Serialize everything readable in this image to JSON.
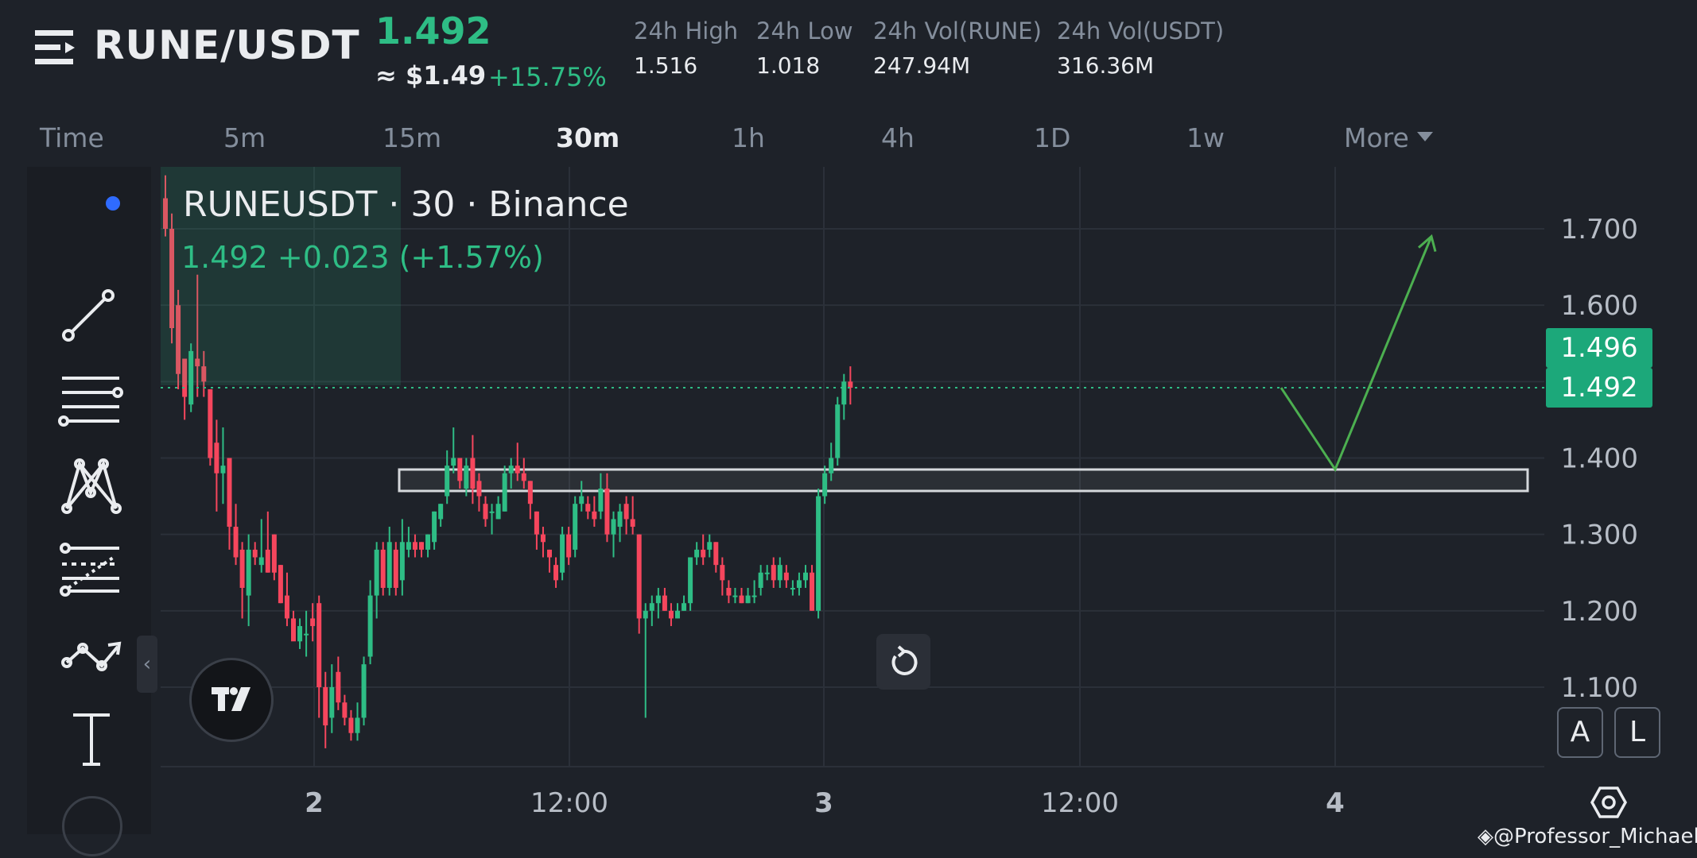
{
  "header": {
    "pair": "RUNE/USDT",
    "last_price": "1.492",
    "usd_price": "≈ $1.49",
    "change_pct": "+15.75%",
    "stats": [
      {
        "label": "24h High",
        "value": "1.516"
      },
      {
        "label": "24h Low",
        "value": "1.018"
      },
      {
        "label": "24h Vol(RUNE)",
        "value": "247.94M"
      },
      {
        "label": "24h Vol(USDT)",
        "value": "316.36M"
      }
    ]
  },
  "intervals": [
    "Time",
    "5m",
    "15m",
    "30m",
    "1h",
    "4h",
    "1D",
    "1w",
    "More"
  ],
  "active_interval": "30m",
  "legend": {
    "symbol": "RUNEUSDT · 30 · Binance",
    "values": "1.492  +0.023 (+1.57%)"
  },
  "price_scale": {
    "ticks": [
      "1.700",
      "1.600",
      "1.400",
      "1.300",
      "1.200",
      "1.100"
    ],
    "tag_upper": "1.496",
    "tag_current": "1.492"
  },
  "time_axis": {
    "ticks": [
      "2",
      "12:00",
      "3",
      "12:00",
      "4"
    ]
  },
  "scale_buttons": {
    "auto": "A",
    "log": "L"
  },
  "watermark": "@Professor_Michael",
  "toolbar": [
    "dot-tool-icon",
    "trend-line-icon",
    "horizontal-lines-icon",
    "pattern-icon",
    "fib-retracement-icon",
    "prediction-icon",
    "text-tool-icon"
  ],
  "colors": {
    "up": "#2ebd85",
    "down": "#f6465d",
    "background": "#1e2229",
    "accent": "#1ca87a"
  },
  "chart_data": {
    "type": "candlestick",
    "interval": "30m",
    "candles_ohlc": [
      [
        1.74,
        1.77,
        1.69,
        1.7
      ],
      [
        1.7,
        1.72,
        1.55,
        1.57
      ],
      [
        1.6,
        1.62,
        1.49,
        1.51
      ],
      [
        1.53,
        1.53,
        1.45,
        1.48
      ],
      [
        1.47,
        1.55,
        1.46,
        1.54
      ],
      [
        1.53,
        1.64,
        1.48,
        1.52
      ],
      [
        1.52,
        1.54,
        1.48,
        1.5
      ],
      [
        1.49,
        1.49,
        1.39,
        1.4
      ],
      [
        1.42,
        1.45,
        1.33,
        1.38
      ],
      [
        1.38,
        1.44,
        1.34,
        1.39
      ],
      [
        1.4,
        1.4,
        1.28,
        1.31
      ],
      [
        1.31,
        1.34,
        1.26,
        1.27
      ],
      [
        1.28,
        1.29,
        1.19,
        1.23
      ],
      [
        1.22,
        1.3,
        1.18,
        1.28
      ],
      [
        1.28,
        1.29,
        1.26,
        1.27
      ],
      [
        1.26,
        1.32,
        1.25,
        1.27
      ],
      [
        1.28,
        1.33,
        1.25,
        1.25
      ],
      [
        1.3,
        1.3,
        1.24,
        1.25
      ],
      [
        1.26,
        1.26,
        1.21,
        1.21
      ],
      [
        1.22,
        1.25,
        1.18,
        1.19
      ],
      [
        1.19,
        1.2,
        1.17,
        1.16
      ],
      [
        1.16,
        1.19,
        1.15,
        1.18
      ],
      [
        1.17,
        1.2,
        1.14,
        1.17
      ],
      [
        1.19,
        1.21,
        1.16,
        1.18
      ],
      [
        1.21,
        1.22,
        1.06,
        1.1
      ],
      [
        1.1,
        1.12,
        1.02,
        1.05
      ],
      [
        1.06,
        1.13,
        1.04,
        1.1
      ],
      [
        1.12,
        1.14,
        1.07,
        1.08
      ],
      [
        1.08,
        1.09,
        1.05,
        1.06
      ],
      [
        1.06,
        1.07,
        1.03,
        1.04
      ],
      [
        1.04,
        1.08,
        1.03,
        1.06
      ],
      [
        1.06,
        1.14,
        1.05,
        1.13
      ],
      [
        1.14,
        1.24,
        1.13,
        1.22
      ],
      [
        1.22,
        1.29,
        1.19,
        1.28
      ],
      [
        1.28,
        1.29,
        1.22,
        1.23
      ],
      [
        1.23,
        1.31,
        1.22,
        1.29
      ],
      [
        1.28,
        1.29,
        1.22,
        1.23
      ],
      [
        1.24,
        1.32,
        1.22,
        1.29
      ],
      [
        1.28,
        1.31,
        1.27,
        1.29
      ],
      [
        1.29,
        1.3,
        1.27,
        1.28
      ],
      [
        1.29,
        1.29,
        1.27,
        1.28
      ],
      [
        1.28,
        1.3,
        1.27,
        1.3
      ],
      [
        1.29,
        1.33,
        1.28,
        1.33
      ],
      [
        1.32,
        1.34,
        1.31,
        1.34
      ],
      [
        1.35,
        1.41,
        1.34,
        1.39
      ],
      [
        1.39,
        1.44,
        1.38,
        1.4
      ],
      [
        1.4,
        1.4,
        1.36,
        1.37
      ],
      [
        1.36,
        1.4,
        1.35,
        1.39
      ],
      [
        1.4,
        1.43,
        1.34,
        1.36
      ],
      [
        1.37,
        1.38,
        1.33,
        1.35
      ],
      [
        1.34,
        1.35,
        1.31,
        1.32
      ],
      [
        1.33,
        1.34,
        1.3,
        1.33
      ],
      [
        1.32,
        1.35,
        1.32,
        1.34
      ],
      [
        1.33,
        1.39,
        1.33,
        1.38
      ],
      [
        1.38,
        1.4,
        1.36,
        1.39
      ],
      [
        1.39,
        1.42,
        1.37,
        1.38
      ],
      [
        1.38,
        1.4,
        1.36,
        1.37
      ],
      [
        1.37,
        1.37,
        1.32,
        1.34
      ],
      [
        1.33,
        1.33,
        1.28,
        1.3
      ],
      [
        1.3,
        1.31,
        1.27,
        1.29
      ],
      [
        1.28,
        1.28,
        1.25,
        1.27
      ],
      [
        1.26,
        1.27,
        1.23,
        1.24
      ],
      [
        1.25,
        1.31,
        1.24,
        1.3
      ],
      [
        1.3,
        1.31,
        1.26,
        1.27
      ],
      [
        1.28,
        1.35,
        1.27,
        1.34
      ],
      [
        1.34,
        1.37,
        1.33,
        1.35
      ],
      [
        1.34,
        1.35,
        1.32,
        1.33
      ],
      [
        1.33,
        1.35,
        1.31,
        1.32
      ],
      [
        1.33,
        1.38,
        1.32,
        1.36
      ],
      [
        1.36,
        1.38,
        1.29,
        1.3
      ],
      [
        1.3,
        1.33,
        1.27,
        1.32
      ],
      [
        1.31,
        1.34,
        1.29,
        1.33
      ],
      [
        1.34,
        1.35,
        1.3,
        1.32
      ],
      [
        1.32,
        1.35,
        1.3,
        1.31
      ],
      [
        1.3,
        1.3,
        1.17,
        1.19
      ],
      [
        1.19,
        1.21,
        1.06,
        1.2
      ],
      [
        1.2,
        1.22,
        1.18,
        1.21
      ],
      [
        1.21,
        1.23,
        1.19,
        1.22
      ],
      [
        1.22,
        1.23,
        1.2,
        1.2
      ],
      [
        1.2,
        1.21,
        1.18,
        1.19
      ],
      [
        1.19,
        1.21,
        1.19,
        1.2
      ],
      [
        1.2,
        1.22,
        1.2,
        1.21
      ],
      [
        1.21,
        1.27,
        1.2,
        1.27
      ],
      [
        1.27,
        1.29,
        1.26,
        1.28
      ],
      [
        1.28,
        1.3,
        1.26,
        1.27
      ],
      [
        1.28,
        1.3,
        1.27,
        1.29
      ],
      [
        1.29,
        1.29,
        1.25,
        1.26
      ],
      [
        1.26,
        1.27,
        1.22,
        1.24
      ],
      [
        1.23,
        1.24,
        1.21,
        1.22
      ],
      [
        1.22,
        1.23,
        1.21,
        1.22
      ],
      [
        1.22,
        1.23,
        1.21,
        1.21
      ],
      [
        1.21,
        1.23,
        1.21,
        1.22
      ],
      [
        1.22,
        1.24,
        1.21,
        1.22
      ],
      [
        1.23,
        1.26,
        1.22,
        1.25
      ],
      [
        1.25,
        1.26,
        1.24,
        1.25
      ],
      [
        1.26,
        1.27,
        1.23,
        1.24
      ],
      [
        1.24,
        1.27,
        1.23,
        1.26
      ],
      [
        1.25,
        1.26,
        1.23,
        1.24
      ],
      [
        1.23,
        1.24,
        1.22,
        1.23
      ],
      [
        1.23,
        1.25,
        1.22,
        1.24
      ],
      [
        1.24,
        1.26,
        1.23,
        1.25
      ],
      [
        1.25,
        1.26,
        1.2,
        1.2
      ],
      [
        1.2,
        1.36,
        1.19,
        1.35
      ],
      [
        1.35,
        1.39,
        1.34,
        1.38
      ],
      [
        1.38,
        1.42,
        1.37,
        1.4
      ],
      [
        1.4,
        1.48,
        1.39,
        1.47
      ],
      [
        1.47,
        1.51,
        1.45,
        1.5
      ],
      [
        1.5,
        1.52,
        1.47,
        1.492
      ]
    ],
    "ylim": [
      1.05,
      1.78
    ],
    "y_ticks": [
      1.7,
      1.6,
      1.4,
      1.3,
      1.2,
      1.1
    ],
    "current_price": 1.492,
    "annotations": {
      "support_zone": [
        1.36,
        1.39
      ],
      "projection_path": [
        1.492,
        1.385,
        1.69
      ]
    }
  }
}
